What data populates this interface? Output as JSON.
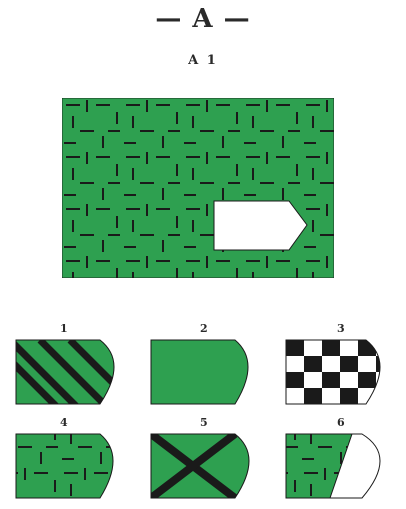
{
  "header": {
    "title": "— A —",
    "subtitle": "A 1"
  },
  "problem": {
    "pattern": "green field with short black dashes (horizontal and vertical)",
    "colors": {
      "green": "#2ea050",
      "ink": "#1a1a1a",
      "blank": "#ffffff"
    }
  },
  "options": [
    {
      "label": "1",
      "pattern": "diagonal-stripes"
    },
    {
      "label": "2",
      "pattern": "solid-green"
    },
    {
      "label": "3",
      "pattern": "black-white-checker"
    },
    {
      "label": "4",
      "pattern": "dash-pattern"
    },
    {
      "label": "5",
      "pattern": "diagonal-cross"
    },
    {
      "label": "6",
      "pattern": "dash-pattern-partial"
    }
  ]
}
